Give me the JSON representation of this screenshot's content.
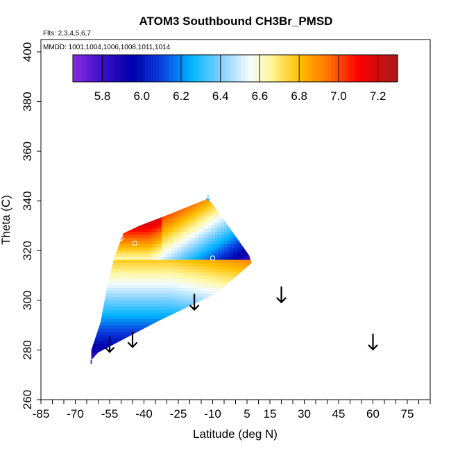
{
  "chart_data": {
    "type": "heatmap",
    "title": "ATOM3 Southbound CH3Br_PMSD",
    "flights_note": "Flts: 2,3,4,5,6,7",
    "dates_note": "MMDD: 1001,1004,1006,1008,1011,1014",
    "xlabel": "Latitude (deg N)",
    "ylabel": "Theta (C)",
    "xlim": [
      -85,
      85
    ],
    "ylim": [
      260,
      405
    ],
    "x_ticks": [
      -85,
      -70,
      -55,
      -40,
      -25,
      -10,
      5,
      15,
      30,
      45,
      60,
      75
    ],
    "y_ticks": [
      260,
      280,
      300,
      320,
      340,
      360,
      380,
      400
    ],
    "colorbar": {
      "range": [
        5.65,
        7.3
      ],
      "ticks": [
        5.8,
        6.0,
        6.2,
        6.4,
        6.6,
        6.8,
        7.0,
        7.2
      ],
      "stops": [
        {
          "v": 5.65,
          "c": "#8a2be2"
        },
        {
          "v": 5.8,
          "c": "#3a0fc8"
        },
        {
          "v": 5.95,
          "c": "#0000aa"
        },
        {
          "v": 6.1,
          "c": "#0a3fe0"
        },
        {
          "v": 6.25,
          "c": "#00b4ff"
        },
        {
          "v": 6.4,
          "c": "#7fd0ff"
        },
        {
          "v": 6.55,
          "c": "#f4fbff"
        },
        {
          "v": 6.65,
          "c": "#fff7a0"
        },
        {
          "v": 6.8,
          "c": "#ffc000"
        },
        {
          "v": 6.95,
          "c": "#ff7000"
        },
        {
          "v": 7.1,
          "c": "#ff0000"
        },
        {
          "v": 7.3,
          "c": "#a51a1a"
        }
      ]
    },
    "profile_markers": [
      {
        "lat": -55,
        "theta": 282
      },
      {
        "lat": -45,
        "theta": 284
      },
      {
        "lat": -18,
        "theta": 299
      },
      {
        "lat": 20,
        "theta": 302
      },
      {
        "lat": 60,
        "theta": 283
      },
      {
        "lat": -12,
        "theta": 341
      }
    ],
    "circles": [
      {
        "lat": -50,
        "theta": 325
      },
      {
        "lat": -44,
        "theta": 323
      },
      {
        "lat": -48,
        "theta": 310
      },
      {
        "lat": -10,
        "theta": 317
      }
    ],
    "field_polygon": [
      {
        "lat": -63,
        "theta": 276
      },
      {
        "lat": -60,
        "theta": 279
      },
      {
        "lat": -33,
        "theta": 292
      },
      {
        "lat": -8,
        "theta": 303
      },
      {
        "lat": 7,
        "theta": 315
      },
      {
        "lat": 6,
        "theta": 318
      },
      {
        "lat": -7,
        "theta": 335
      },
      {
        "lat": -12,
        "theta": 341
      },
      {
        "lat": -28,
        "theta": 335
      },
      {
        "lat": -42,
        "theta": 330
      },
      {
        "lat": -49,
        "theta": 327
      },
      {
        "lat": -53,
        "theta": 317
      },
      {
        "lat": -56,
        "theta": 306
      },
      {
        "lat": -59,
        "theta": 291
      },
      {
        "lat": -63,
        "theta": 280
      }
    ]
  }
}
